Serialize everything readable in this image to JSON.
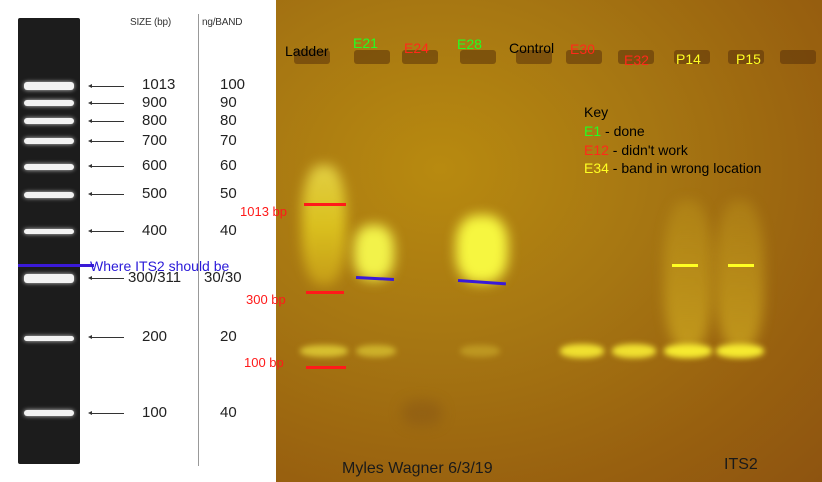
{
  "reference_ladder": {
    "size_header": "SIZE (bp)",
    "ng_header": "ng/BAND",
    "bands": [
      {
        "size": "1013",
        "ng": "100"
      },
      {
        "size": "900",
        "ng": "90"
      },
      {
        "size": "800",
        "ng": "80"
      },
      {
        "size": "700",
        "ng": "70"
      },
      {
        "size": "600",
        "ng": "60"
      },
      {
        "size": "500",
        "ng": "50"
      },
      {
        "size": "400",
        "ng": "40"
      },
      {
        "size": "300/311",
        "ng": "30/30"
      },
      {
        "size": "200",
        "ng": "20"
      },
      {
        "size": "100",
        "ng": "40"
      }
    ]
  },
  "annotation": {
    "its2_position": "Where ITS2 should be"
  },
  "gel": {
    "lanes": [
      {
        "label": "Ladder",
        "color": "#000000"
      },
      {
        "label": "E21",
        "color": "#22ff22"
      },
      {
        "label": "E24",
        "color": "#ff2a1a"
      },
      {
        "label": "E28",
        "color": "#22ff22"
      },
      {
        "label": "Control",
        "color": "#000000"
      },
      {
        "label": "E30",
        "color": "#ff2a1a"
      },
      {
        "label": "E32",
        "color": "#ff2a1a"
      },
      {
        "label": "P14",
        "color": "#ffff22"
      },
      {
        "label": "P15",
        "color": "#ffff22"
      }
    ],
    "bp_markers": [
      "1013 bp",
      "300 bp",
      "100 bp"
    ],
    "key": {
      "title": "Key",
      "entries": [
        {
          "code": "E1",
          "desc": " - done",
          "color": "#22ff22"
        },
        {
          "code": "E12",
          "desc": " - didn't work",
          "color": "#ff2a1a"
        },
        {
          "code": "E34",
          "desc": " - band in wrong location",
          "color": "#ffff22"
        }
      ]
    },
    "author_date": "Myles Wagner 6/3/19",
    "target": "ITS2"
  }
}
